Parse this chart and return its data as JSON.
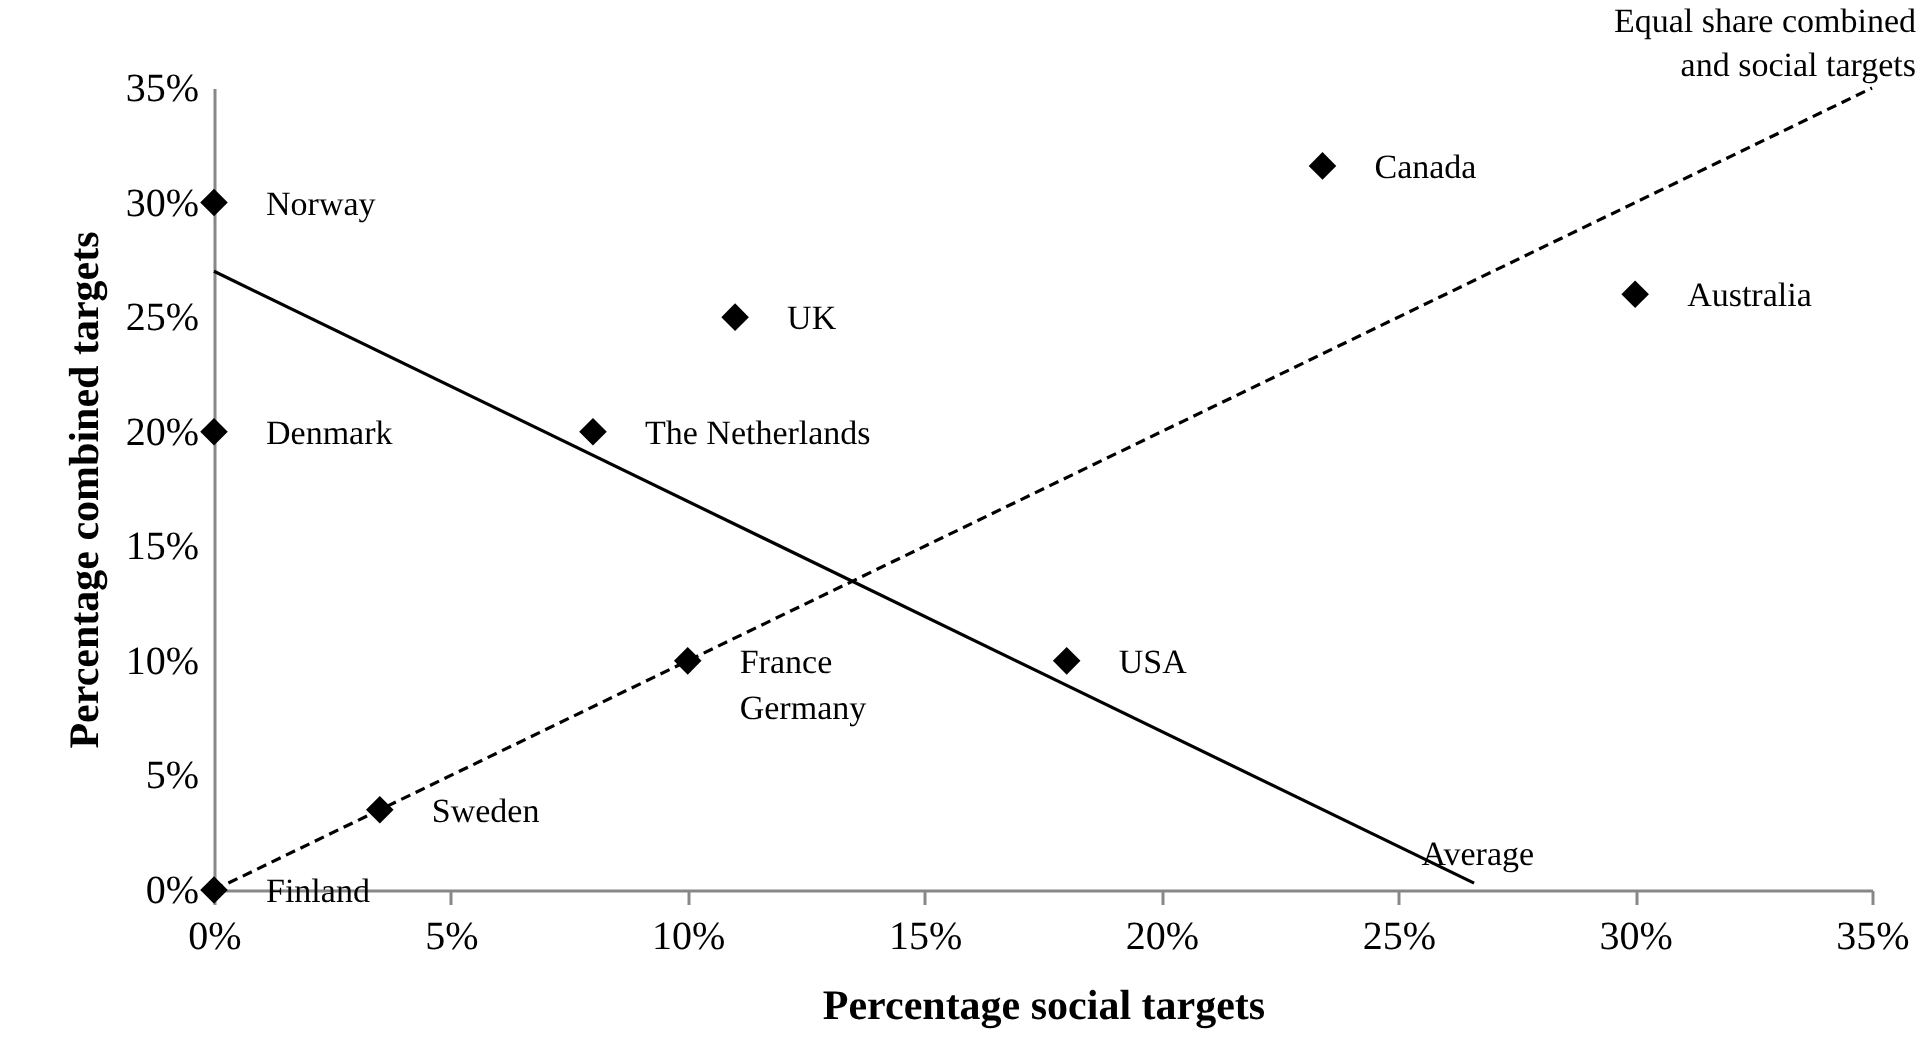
{
  "chart_data": {
    "type": "scatter",
    "xlabel": "Percentage social targets",
    "ylabel": "Percentage combined targets",
    "xlim": [
      0,
      35
    ],
    "ylim": [
      0,
      35
    ],
    "xticks": [
      {
        "value": 0,
        "label": "0%"
      },
      {
        "value": 5,
        "label": "5%"
      },
      {
        "value": 10,
        "label": "10%"
      },
      {
        "value": 15,
        "label": "15%"
      },
      {
        "value": 20,
        "label": "20%"
      },
      {
        "value": 25,
        "label": "25%"
      },
      {
        "value": 30,
        "label": "30%"
      },
      {
        "value": 35,
        "label": "35%"
      }
    ],
    "yticks": [
      {
        "value": 0,
        "label": "0%"
      },
      {
        "value": 5,
        "label": "5%"
      },
      {
        "value": 10,
        "label": "10%"
      },
      {
        "value": 15,
        "label": "15%"
      },
      {
        "value": 20,
        "label": "20%"
      },
      {
        "value": 25,
        "label": "25%"
      },
      {
        "value": 30,
        "label": "30%"
      },
      {
        "value": 35,
        "label": "35%"
      }
    ],
    "grid": false,
    "marker": "diamond",
    "series": [
      {
        "color": "#000000",
        "x": [
          0,
          0,
          0,
          3.5,
          8,
          10,
          11,
          18,
          23.4,
          30
        ],
        "values": [
          30,
          20,
          0,
          3.5,
          20,
          10,
          25,
          10,
          31.6,
          26
        ]
      },
      {
        "type": "line",
        "name": "Average",
        "color": "#000000",
        "line_style": "solid",
        "marker": "none",
        "x": [
          0,
          26.6
        ],
        "values": [
          27,
          0.3
        ]
      },
      {
        "type": "line",
        "name": "Equal share combined and social targets",
        "color": "#000000",
        "line_style": "dashed",
        "marker": "none",
        "x": [
          0,
          35
        ],
        "values": [
          0,
          35
        ]
      }
    ],
    "annotations": [
      {
        "text": "Norway",
        "x": 0,
        "y": 30
      },
      {
        "text": "Denmark",
        "x": 0,
        "y": 20
      },
      {
        "text": "Finland",
        "x": 0,
        "y": 0
      },
      {
        "text": "Sweden",
        "x": 3.5,
        "y": 3.5
      },
      {
        "text": "The Netherlands",
        "x": 8,
        "y": 20
      },
      {
        "text": "France\nGermany",
        "x": 10,
        "y": 10
      },
      {
        "text": "UK",
        "x": 11,
        "y": 25
      },
      {
        "text": "USA",
        "x": 18,
        "y": 10
      },
      {
        "text": "Canada",
        "x": 23.4,
        "y": 31.6
      },
      {
        "text": "Australia",
        "x": 30,
        "y": 26
      }
    ]
  }
}
